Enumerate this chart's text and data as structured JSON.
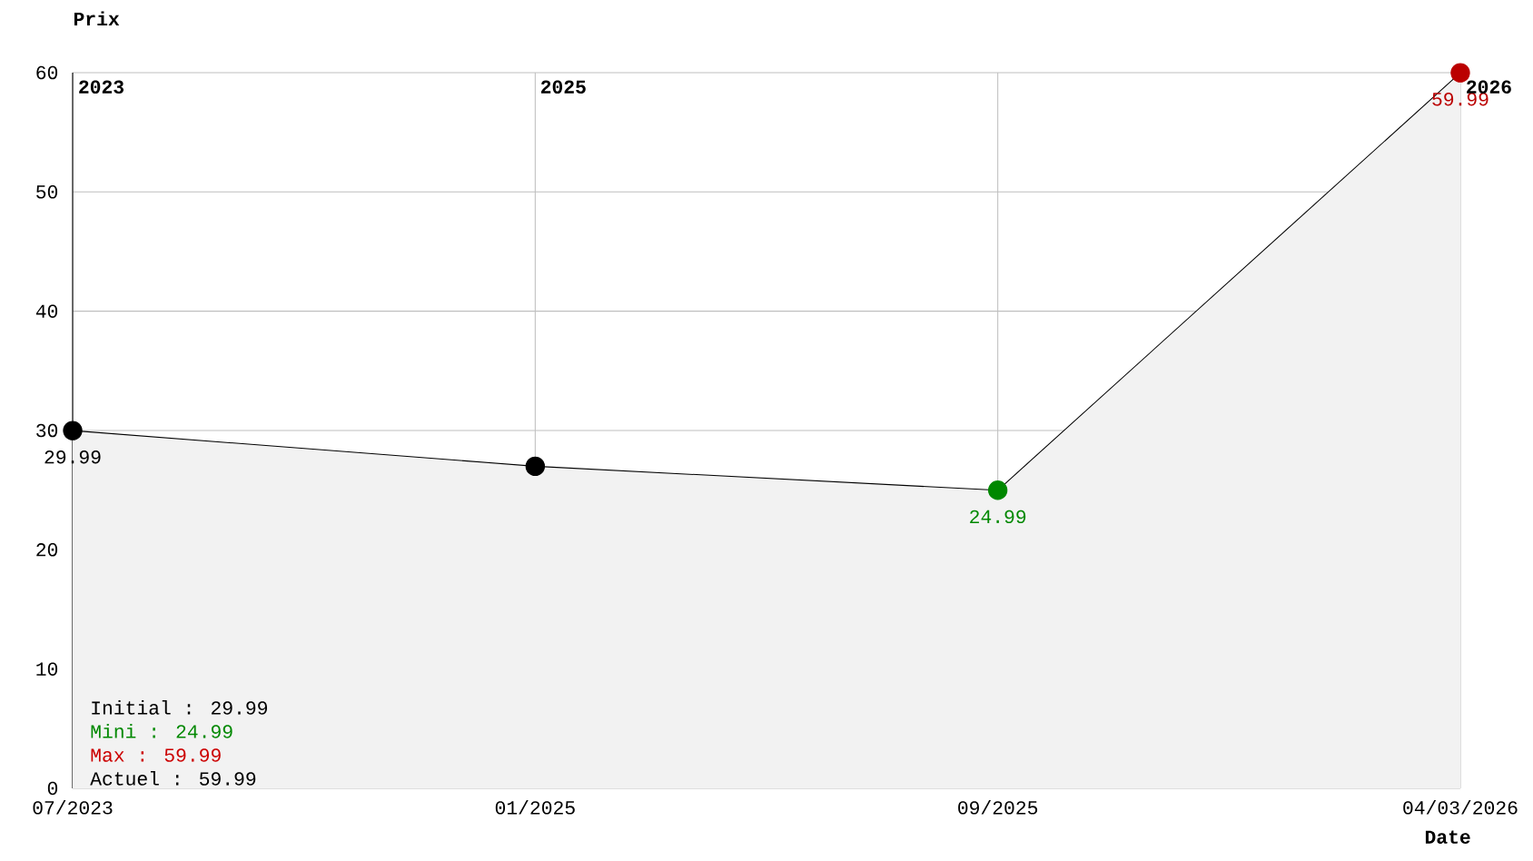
{
  "chart_data": {
    "type": "area",
    "ylabel": "Prix",
    "xlabel": "Date",
    "categories": [
      "07/2023",
      "01/2025",
      "09/2025",
      "04/03/2026"
    ],
    "series": [
      {
        "color": "#000000",
        "colors": [
          "#000000",
          "#000000",
          "#008800",
          "#bb0000"
        ],
        "values": [
          29.99,
          27,
          24.99,
          59.99
        ],
        "value_labels": [
          "29.99",
          null,
          "24.99",
          "59.99"
        ]
      }
    ],
    "ylim": [
      0,
      60
    ],
    "yticks": [
      0,
      10,
      20,
      30,
      40,
      50,
      60
    ],
    "grid": true,
    "marker": "circle",
    "annotations": [
      "2023",
      "2025",
      "2026",
      "Initial : 29.99",
      "Mini : 24.99",
      "Max : 59.99",
      "Actuel : 59.99"
    ]
  }
}
